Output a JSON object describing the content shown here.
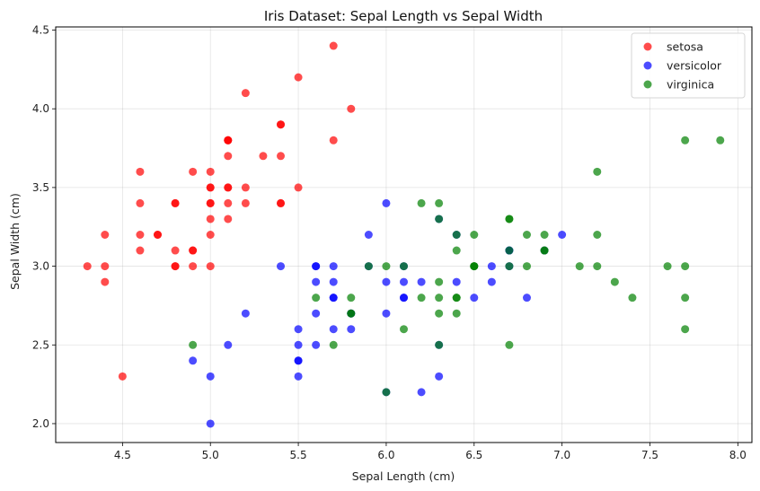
{
  "chart_data": {
    "type": "scatter",
    "title": "Iris Dataset: Sepal Length vs Sepal Width",
    "xlabel": "Sepal Length (cm)",
    "ylabel": "Sepal Width (cm)",
    "xlim": [
      4.12,
      8.08
    ],
    "ylim": [
      1.88,
      4.52
    ],
    "xticks": [
      4.5,
      5.0,
      5.5,
      6.0,
      6.5,
      7.0,
      7.5,
      8.0
    ],
    "xtick_labels": [
      "4.5",
      "5.0",
      "5.5",
      "6.0",
      "6.5",
      "7.0",
      "7.5",
      "8.0"
    ],
    "yticks": [
      2.0,
      2.5,
      3.0,
      3.5,
      4.0,
      4.5
    ],
    "ytick_labels": [
      "2.0",
      "2.5",
      "3.0",
      "3.5",
      "4.0",
      "4.5"
    ],
    "grid": true,
    "legend_position": "top-right",
    "series": [
      {
        "name": "setosa",
        "color": "#ff0000",
        "points": [
          [
            5.1,
            3.5
          ],
          [
            4.9,
            3.0
          ],
          [
            4.7,
            3.2
          ],
          [
            4.6,
            3.1
          ],
          [
            5.0,
            3.6
          ],
          [
            5.4,
            3.9
          ],
          [
            4.6,
            3.4
          ],
          [
            5.0,
            3.4
          ],
          [
            4.4,
            2.9
          ],
          [
            4.9,
            3.1
          ],
          [
            5.4,
            3.7
          ],
          [
            4.8,
            3.4
          ],
          [
            4.8,
            3.0
          ],
          [
            4.3,
            3.0
          ],
          [
            5.8,
            4.0
          ],
          [
            5.7,
            4.4
          ],
          [
            5.4,
            3.9
          ],
          [
            5.1,
            3.5
          ],
          [
            5.7,
            3.8
          ],
          [
            5.1,
            3.8
          ],
          [
            5.4,
            3.4
          ],
          [
            5.1,
            3.7
          ],
          [
            4.6,
            3.6
          ],
          [
            5.1,
            3.3
          ],
          [
            4.8,
            3.4
          ],
          [
            5.0,
            3.0
          ],
          [
            5.0,
            3.4
          ],
          [
            5.2,
            3.5
          ],
          [
            5.2,
            3.4
          ],
          [
            4.7,
            3.2
          ],
          [
            4.8,
            3.1
          ],
          [
            5.4,
            3.4
          ],
          [
            5.2,
            4.1
          ],
          [
            5.5,
            4.2
          ],
          [
            4.9,
            3.1
          ],
          [
            5.0,
            3.2
          ],
          [
            5.5,
            3.5
          ],
          [
            4.9,
            3.6
          ],
          [
            4.4,
            3.0
          ],
          [
            5.1,
            3.4
          ],
          [
            5.0,
            3.5
          ],
          [
            4.5,
            2.3
          ],
          [
            4.4,
            3.2
          ],
          [
            5.0,
            3.5
          ],
          [
            5.1,
            3.8
          ],
          [
            4.8,
            3.0
          ],
          [
            5.1,
            3.8
          ],
          [
            4.6,
            3.2
          ],
          [
            5.3,
            3.7
          ],
          [
            5.0,
            3.3
          ]
        ]
      },
      {
        "name": "versicolor",
        "color": "#0000ff",
        "points": [
          [
            7.0,
            3.2
          ],
          [
            6.4,
            3.2
          ],
          [
            6.9,
            3.1
          ],
          [
            5.5,
            2.3
          ],
          [
            6.5,
            2.8
          ],
          [
            5.7,
            2.8
          ],
          [
            6.3,
            3.3
          ],
          [
            4.9,
            2.4
          ],
          [
            6.6,
            2.9
          ],
          [
            5.2,
            2.7
          ],
          [
            5.0,
            2.0
          ],
          [
            5.9,
            3.0
          ],
          [
            6.0,
            2.2
          ],
          [
            6.1,
            2.9
          ],
          [
            5.6,
            2.9
          ],
          [
            6.7,
            3.1
          ],
          [
            5.6,
            3.0
          ],
          [
            5.8,
            2.7
          ],
          [
            6.2,
            2.2
          ],
          [
            5.6,
            2.5
          ],
          [
            5.9,
            3.2
          ],
          [
            6.1,
            2.8
          ],
          [
            6.3,
            2.5
          ],
          [
            6.1,
            2.8
          ],
          [
            6.4,
            2.9
          ],
          [
            6.6,
            3.0
          ],
          [
            6.8,
            2.8
          ],
          [
            6.7,
            3.0
          ],
          [
            6.0,
            2.9
          ],
          [
            5.7,
            2.6
          ],
          [
            5.5,
            2.4
          ],
          [
            5.5,
            2.4
          ],
          [
            5.8,
            2.7
          ],
          [
            6.0,
            2.7
          ],
          [
            5.4,
            3.0
          ],
          [
            6.0,
            3.4
          ],
          [
            6.7,
            3.1
          ],
          [
            6.3,
            2.3
          ],
          [
            5.6,
            3.0
          ],
          [
            5.5,
            2.5
          ],
          [
            5.5,
            2.6
          ],
          [
            6.1,
            3.0
          ],
          [
            5.8,
            2.6
          ],
          [
            5.0,
            2.3
          ],
          [
            5.6,
            2.7
          ],
          [
            5.7,
            3.0
          ],
          [
            5.7,
            2.9
          ],
          [
            6.2,
            2.9
          ],
          [
            5.1,
            2.5
          ],
          [
            5.7,
            2.8
          ]
        ]
      },
      {
        "name": "virginica",
        "color": "#008000",
        "points": [
          [
            6.3,
            3.3
          ],
          [
            5.8,
            2.7
          ],
          [
            7.1,
            3.0
          ],
          [
            6.3,
            2.9
          ],
          [
            6.5,
            3.0
          ],
          [
            7.6,
            3.0
          ],
          [
            4.9,
            2.5
          ],
          [
            7.3,
            2.9
          ],
          [
            6.7,
            2.5
          ],
          [
            7.2,
            3.6
          ],
          [
            6.5,
            3.2
          ],
          [
            6.4,
            2.7
          ],
          [
            6.8,
            3.0
          ],
          [
            5.7,
            2.5
          ],
          [
            5.8,
            2.8
          ],
          [
            6.4,
            3.2
          ],
          [
            6.5,
            3.0
          ],
          [
            7.7,
            3.8
          ],
          [
            7.7,
            2.6
          ],
          [
            6.0,
            2.2
          ],
          [
            6.9,
            3.2
          ],
          [
            5.6,
            2.8
          ],
          [
            7.7,
            2.8
          ],
          [
            6.3,
            2.7
          ],
          [
            6.7,
            3.3
          ],
          [
            7.2,
            3.2
          ],
          [
            6.2,
            2.8
          ],
          [
            6.1,
            3.0
          ],
          [
            6.4,
            2.8
          ],
          [
            7.2,
            3.0
          ],
          [
            7.4,
            2.8
          ],
          [
            7.9,
            3.8
          ],
          [
            6.4,
            2.8
          ],
          [
            6.3,
            2.8
          ],
          [
            6.1,
            2.6
          ],
          [
            7.7,
            3.0
          ],
          [
            6.3,
            3.4
          ],
          [
            6.4,
            3.1
          ],
          [
            6.0,
            3.0
          ],
          [
            6.9,
            3.1
          ],
          [
            6.7,
            3.1
          ],
          [
            6.9,
            3.1
          ],
          [
            5.8,
            2.7
          ],
          [
            6.8,
            3.2
          ],
          [
            6.7,
            3.3
          ],
          [
            6.7,
            3.0
          ],
          [
            6.3,
            2.5
          ],
          [
            6.5,
            3.0
          ],
          [
            6.2,
            3.4
          ],
          [
            5.9,
            3.0
          ]
        ]
      }
    ]
  }
}
